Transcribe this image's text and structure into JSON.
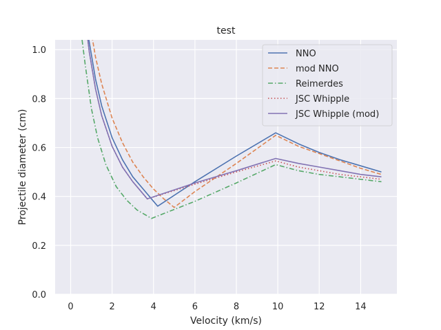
{
  "chart_data": {
    "type": "line",
    "title": "test",
    "xlabel": "Velocity (km/s)",
    "ylabel": "Projectile diameter (cm)",
    "xlim": [
      -0.75,
      15.75
    ],
    "ylim": [
      0.0,
      1.04
    ],
    "xticks": [
      0,
      2,
      4,
      6,
      8,
      10,
      12,
      14
    ],
    "yticks": [
      0.0,
      0.2,
      0.4,
      0.6,
      0.8,
      1.0
    ],
    "xtick_labels": [
      "0",
      "2",
      "4",
      "6",
      "8",
      "10",
      "12",
      "14"
    ],
    "ytick_labels": [
      "0.0",
      "0.2",
      "0.4",
      "0.6",
      "0.8",
      "1.0"
    ],
    "grid": true,
    "legend_position": "top-right",
    "series": [
      {
        "name": "NNO",
        "color": "#4c72b0",
        "dash": "solid",
        "x": [
          0.7,
          0.9,
          1.2,
          1.5,
          2.0,
          2.5,
          3.0,
          3.5,
          4.0,
          4.2,
          6.0,
          8.0,
          9.9,
          11,
          12,
          13,
          14,
          15
        ],
        "y": [
          1.13,
          1.03,
          0.88,
          0.77,
          0.64,
          0.55,
          0.48,
          0.43,
          0.38,
          0.36,
          0.46,
          0.565,
          0.66,
          0.615,
          0.58,
          0.55,
          0.525,
          0.5
        ]
      },
      {
        "name": "mod NNO",
        "color": "#dd8452",
        "dash": "dashed",
        "x": [
          0.9,
          1.0,
          1.2,
          1.5,
          2.0,
          2.5,
          3.0,
          3.5,
          4.0,
          4.5,
          5.0,
          6.0,
          8.0,
          9.9,
          11,
          12,
          13,
          14,
          15
        ],
        "y": [
          1.13,
          1.07,
          0.97,
          0.86,
          0.72,
          0.62,
          0.54,
          0.48,
          0.43,
          0.39,
          0.355,
          0.42,
          0.535,
          0.65,
          0.605,
          0.575,
          0.545,
          0.515,
          0.49
        ]
      },
      {
        "name": "Reimerdes",
        "color": "#55a868",
        "dash": "dashdot",
        "x": [
          0.55,
          0.7,
          1.0,
          1.3,
          1.7,
          2.2,
          2.7,
          3.2,
          3.9,
          6.0,
          8.0,
          9.9,
          11,
          12,
          13,
          14,
          15
        ],
        "y": [
          1.04,
          0.94,
          0.76,
          0.64,
          0.53,
          0.44,
          0.385,
          0.345,
          0.31,
          0.38,
          0.455,
          0.53,
          0.505,
          0.49,
          0.48,
          0.47,
          0.46
        ]
      },
      {
        "name": "JSC Whipple",
        "color": "#c44e52",
        "dash": "dotted",
        "x": [
          0.7,
          0.9,
          1.2,
          1.5,
          2.0,
          2.5,
          3.0,
          3.7,
          6.0,
          8.0,
          9.9,
          11,
          12,
          13,
          14,
          15
        ],
        "y": [
          1.13,
          0.99,
          0.84,
          0.73,
          0.605,
          0.52,
          0.46,
          0.39,
          0.45,
          0.5,
          0.545,
          0.52,
          0.505,
          0.49,
          0.48,
          0.47
        ]
      },
      {
        "name": "JSC Whipple (mod)",
        "color": "#8172b3",
        "dash": "solid",
        "x": [
          0.7,
          0.9,
          1.2,
          1.5,
          2.0,
          2.5,
          3.0,
          3.7,
          6.0,
          8.0,
          9.9,
          11,
          12,
          13,
          14,
          15
        ],
        "y": [
          1.13,
          0.99,
          0.84,
          0.73,
          0.605,
          0.52,
          0.46,
          0.39,
          0.455,
          0.505,
          0.555,
          0.535,
          0.52,
          0.505,
          0.49,
          0.48
        ]
      }
    ]
  }
}
